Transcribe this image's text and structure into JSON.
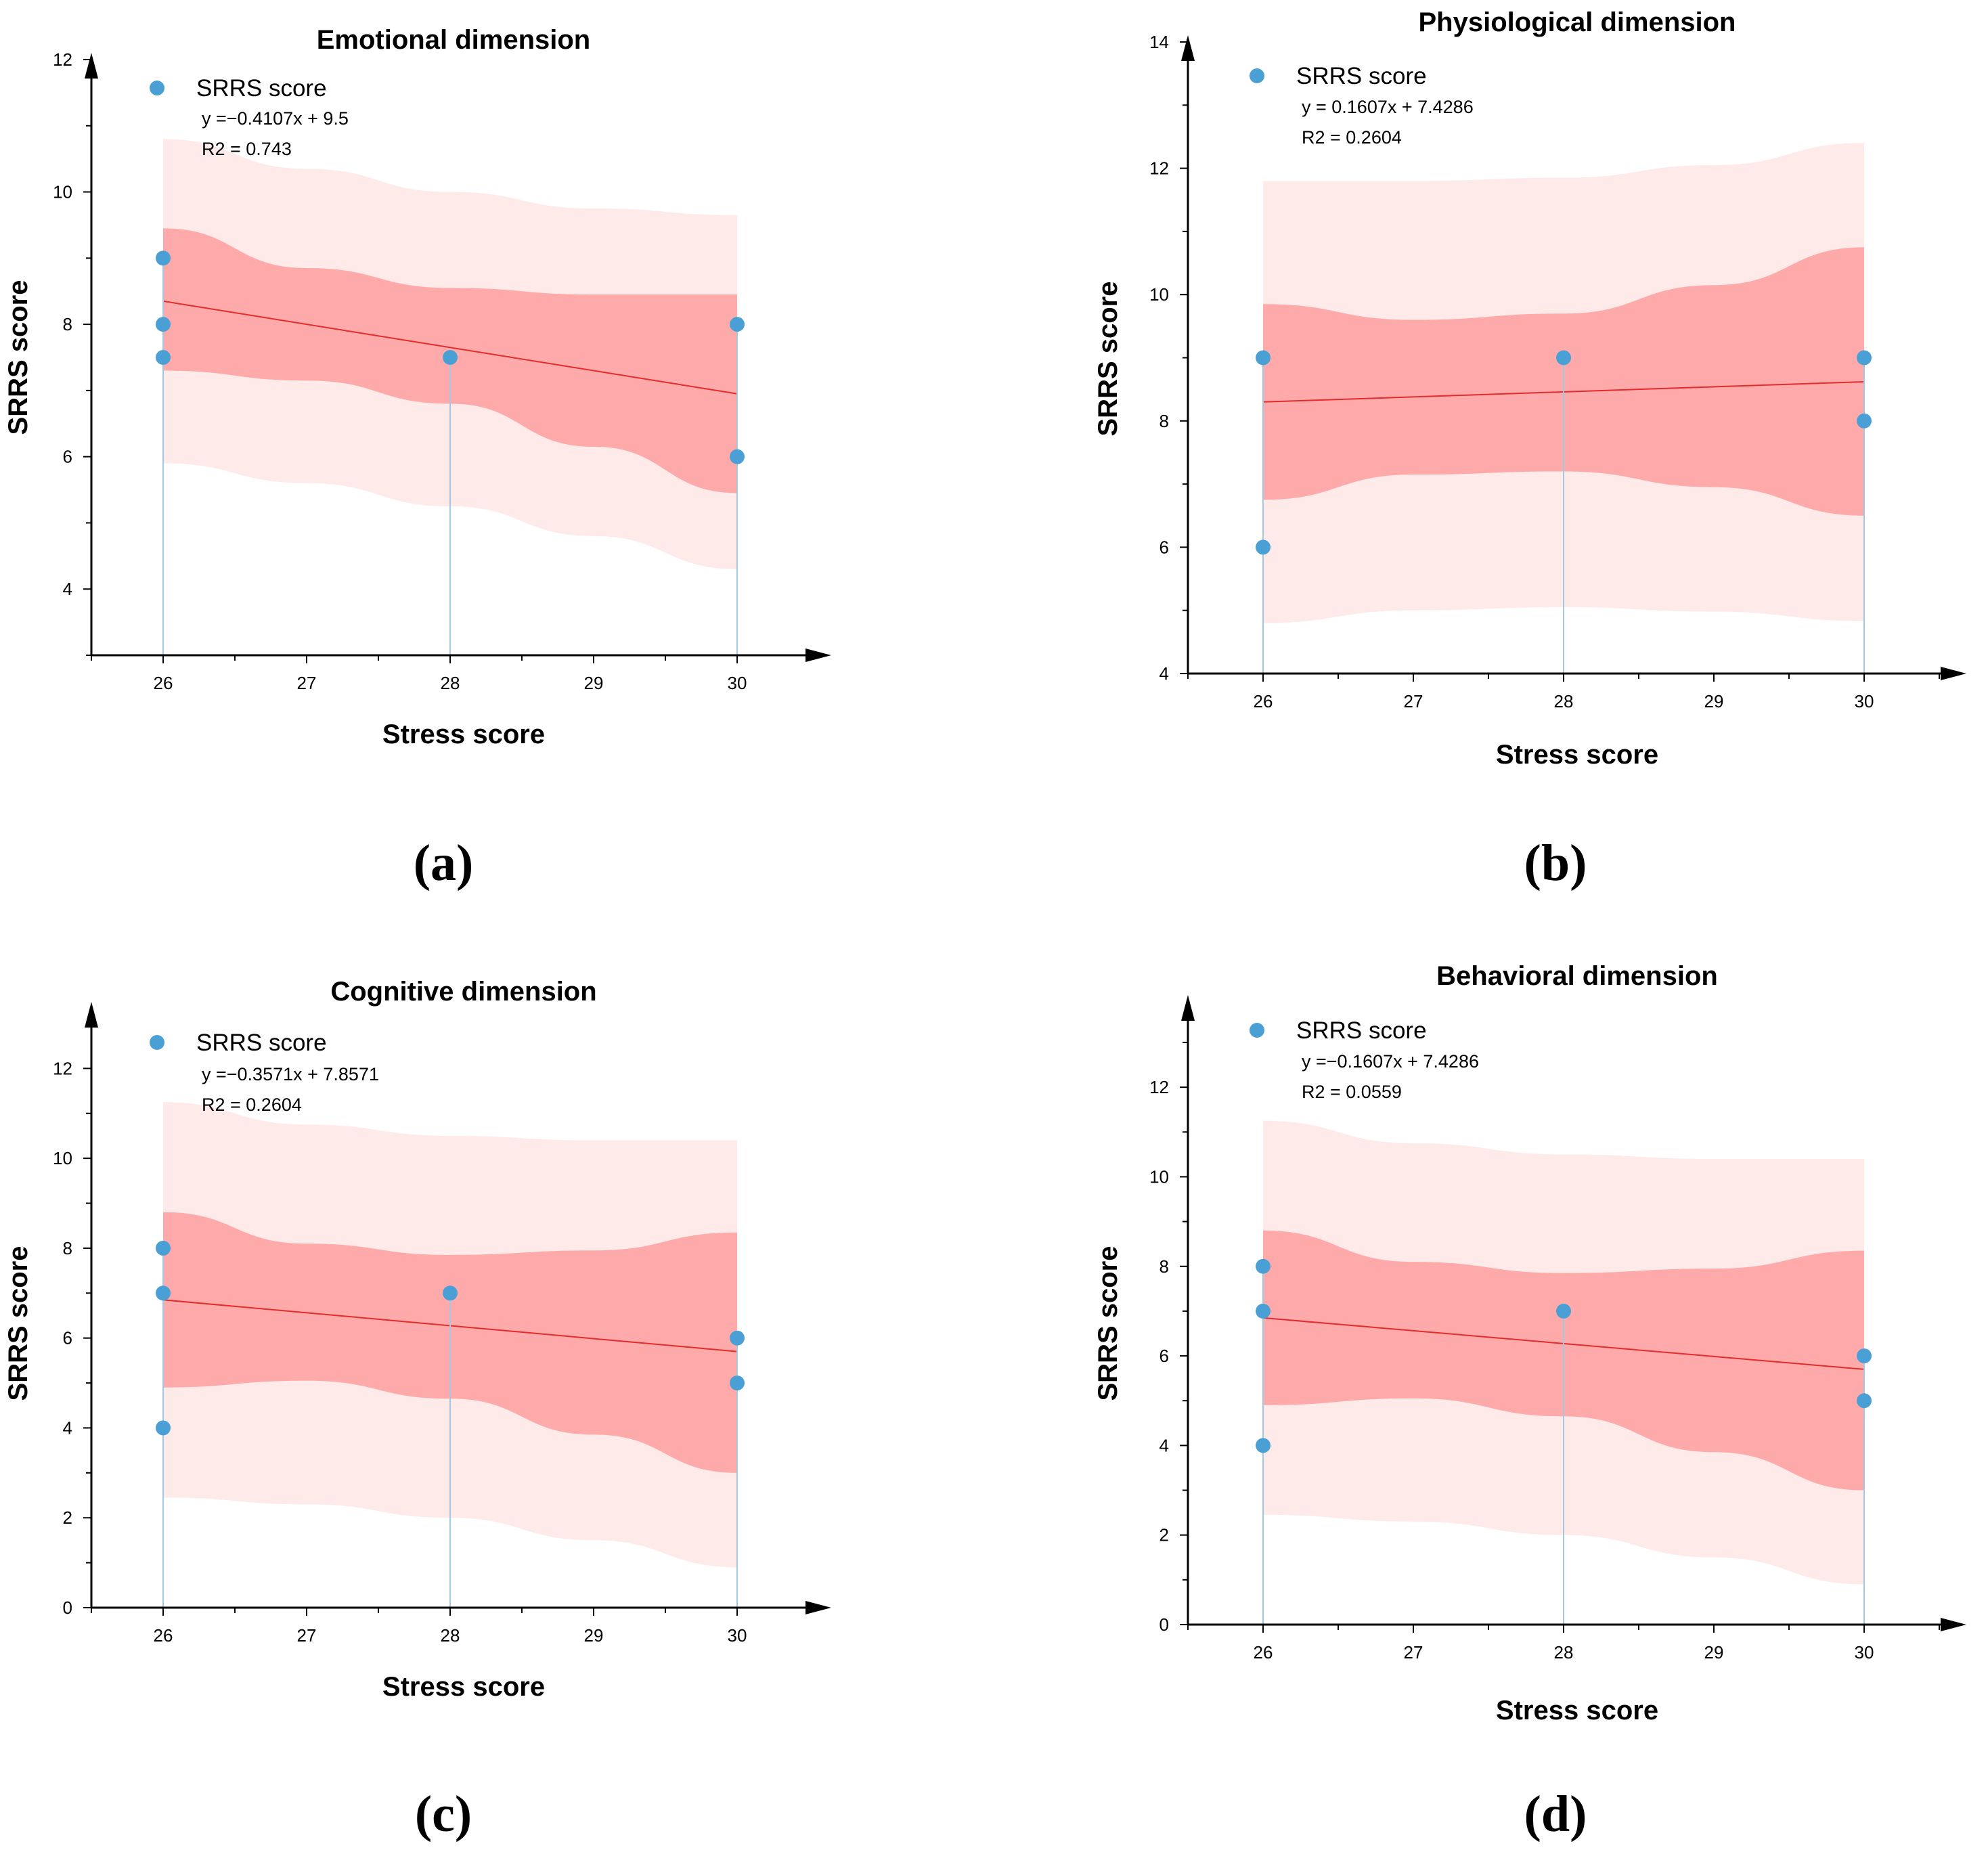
{
  "chart_data": [
    {
      "type": "scatter",
      "panel_label": "(a)",
      "title": "Emotional dimension",
      "xlabel": "Stress score",
      "ylabel": "SRRS score",
      "xlim": [
        25.5,
        30.5
      ],
      "ylim": [
        3,
        12
      ],
      "x_ticks": [
        26,
        27,
        28,
        29,
        30
      ],
      "y_ticks": [
        4,
        6,
        8,
        10,
        12
      ],
      "x_minor_step": 0.5,
      "y_minor_step": 1,
      "legend": "SRRS score",
      "equation": "y =−0.4107x + 9.5",
      "r2": "R2 = 0.743",
      "points": [
        [
          26,
          9
        ],
        [
          26,
          8
        ],
        [
          26,
          7.5
        ],
        [
          28,
          7.5
        ],
        [
          30,
          8
        ],
        [
          30,
          6
        ]
      ],
      "fit_line": [
        [
          26,
          8.35
        ],
        [
          30,
          6.95
        ]
      ],
      "confidence_band": {
        "x": [
          26,
          27,
          28,
          29,
          30
        ],
        "upper": [
          9.45,
          8.85,
          8.55,
          8.45,
          8.45
        ],
        "lower": [
          7.3,
          7.15,
          6.8,
          6.15,
          5.45
        ]
      },
      "prediction_band": {
        "x": [
          26,
          27,
          28,
          29,
          30
        ],
        "upper": [
          10.8,
          10.35,
          10.0,
          9.75,
          9.65
        ],
        "lower": [
          5.9,
          5.6,
          5.25,
          4.8,
          4.3
        ]
      },
      "colors": {
        "point": "#4a9fd5",
        "fit": "#e52c2c",
        "confidence": "#ffaaaa",
        "prediction": "#ffeaea",
        "stem": "#a3c9e2"
      }
    },
    {
      "type": "scatter",
      "panel_label": "(b)",
      "title": "Physiological dimension",
      "xlabel": "Stress score",
      "ylabel": "SRRS score",
      "xlim": [
        25.5,
        30.5
      ],
      "ylim": [
        4,
        14
      ],
      "x_ticks": [
        26,
        27,
        28,
        29,
        30
      ],
      "y_ticks": [
        4,
        6,
        8,
        10,
        12,
        14
      ],
      "x_minor_step": 0.5,
      "y_minor_step": 1,
      "legend": "SRRS score",
      "equation": "y = 0.1607x + 7.4286",
      "r2": "R2 = 0.2604",
      "points": [
        [
          26,
          9
        ],
        [
          26,
          6
        ],
        [
          28,
          9
        ],
        [
          30,
          9
        ],
        [
          30,
          8
        ]
      ],
      "fit_line": [
        [
          26,
          8.3
        ],
        [
          30,
          8.62
        ]
      ],
      "confidence_band": {
        "x": [
          26,
          27,
          28,
          29,
          30
        ],
        "upper": [
          9.85,
          9.6,
          9.7,
          10.15,
          10.75
        ],
        "lower": [
          6.75,
          7.15,
          7.2,
          6.95,
          6.5
        ]
      },
      "prediction_band": {
        "x": [
          26,
          27,
          28,
          29,
          30
        ],
        "upper": [
          11.8,
          11.8,
          11.85,
          12.05,
          12.4
        ],
        "lower": [
          4.8,
          5.0,
          5.05,
          4.98,
          4.83
        ]
      },
      "colors": {
        "point": "#4a9fd5",
        "fit": "#e52c2c",
        "confidence": "#ffaaaa",
        "prediction": "#ffeaea",
        "stem": "#a3c9e2"
      }
    },
    {
      "type": "scatter",
      "panel_label": "(c)",
      "title": "Cognitive dimension",
      "xlabel": "Stress score",
      "ylabel": "SRRS score",
      "xlim": [
        25.5,
        30.5
      ],
      "ylim": [
        0,
        13
      ],
      "x_ticks": [
        26,
        27,
        28,
        29,
        30
      ],
      "y_ticks": [
        0,
        2,
        4,
        6,
        8,
        10,
        12
      ],
      "x_minor_step": 0.5,
      "y_minor_step": 1,
      "legend": "SRRS score",
      "equation": "y =−0.3571x + 7.8571",
      "r2": "R2 = 0.2604",
      "points": [
        [
          26,
          8
        ],
        [
          26,
          7
        ],
        [
          26,
          4
        ],
        [
          28,
          7
        ],
        [
          30,
          6
        ],
        [
          30,
          5
        ]
      ],
      "fit_line": [
        [
          26,
          6.85
        ],
        [
          30,
          5.7
        ]
      ],
      "confidence_band": {
        "x": [
          26,
          27,
          28,
          29,
          30
        ],
        "upper": [
          8.8,
          8.1,
          7.85,
          7.95,
          8.35
        ],
        "lower": [
          4.9,
          5.05,
          4.65,
          3.85,
          3.0
        ]
      },
      "prediction_band": {
        "x": [
          26,
          27,
          28,
          29,
          30
        ],
        "upper": [
          11.25,
          10.75,
          10.5,
          10.4,
          10.4
        ],
        "lower": [
          2.45,
          2.3,
          2.0,
          1.5,
          0.9
        ]
      },
      "colors": {
        "point": "#4a9fd5",
        "fit": "#e52c2c",
        "confidence": "#ffaaaa",
        "prediction": "#ffeaea",
        "stem": "#a3c9e2"
      }
    },
    {
      "type": "scatter",
      "panel_label": "(d)",
      "title": "Behavioral dimension",
      "xlabel": "Stress score",
      "ylabel": "SRRS score",
      "xlim": [
        25.5,
        30.5
      ],
      "ylim": [
        0,
        13
      ],
      "x_ticks": [
        26,
        27,
        28,
        29,
        30
      ],
      "y_ticks": [
        0,
        2,
        4,
        6,
        8,
        10,
        12
      ],
      "x_minor_step": 0.5,
      "y_minor_step": 1,
      "legend": "SRRS score",
      "equation": "y =−0.1607x + 7.4286",
      "r2": "R2 = 0.0559",
      "points": [
        [
          26,
          8
        ],
        [
          26,
          7
        ],
        [
          26,
          4
        ],
        [
          28,
          7
        ],
        [
          30,
          6
        ],
        [
          30,
          5
        ]
      ],
      "fit_line": [
        [
          26,
          6.85
        ],
        [
          30,
          5.7
        ]
      ],
      "confidence_band": {
        "x": [
          26,
          27,
          28,
          29,
          30
        ],
        "upper": [
          8.8,
          8.1,
          7.85,
          7.95,
          8.35
        ],
        "lower": [
          4.9,
          5.05,
          4.65,
          3.85,
          3.0
        ]
      },
      "prediction_band": {
        "x": [
          26,
          27,
          28,
          29,
          30
        ],
        "upper": [
          11.25,
          10.75,
          10.5,
          10.4,
          10.4
        ],
        "lower": [
          2.45,
          2.3,
          2.0,
          1.5,
          0.9
        ]
      },
      "colors": {
        "point": "#4a9fd5",
        "fit": "#e52c2c",
        "confidence": "#ffaaaa",
        "prediction": "#ffeaea",
        "stem": "#a3c9e2"
      }
    }
  ]
}
